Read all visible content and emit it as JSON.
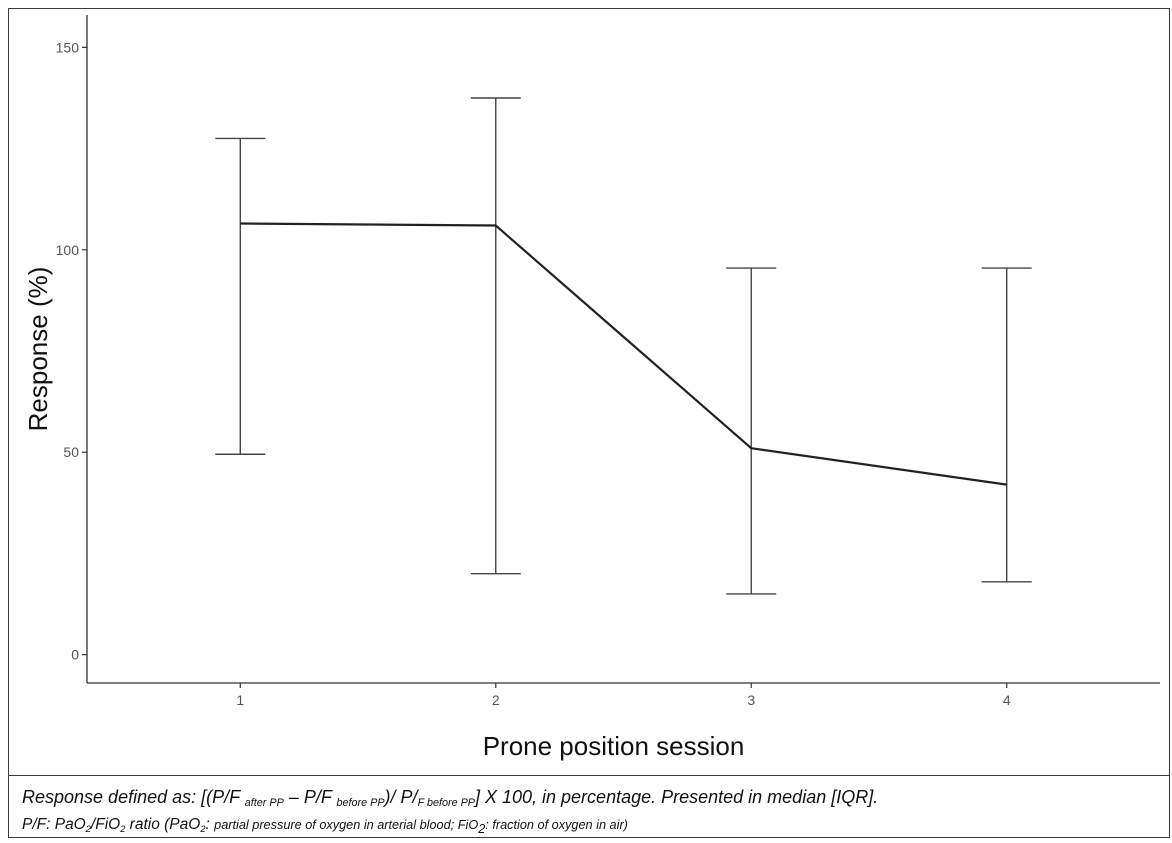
{
  "chart_data": {
    "type": "line",
    "xlabel": "Prone position session",
    "ylabel": "Response (%)",
    "xlim": [
      0.4,
      4.6
    ],
    "ylim": [
      -7,
      158
    ],
    "x_ticks": [
      "1",
      "2",
      "3",
      "4"
    ],
    "y_ticks": [
      "0",
      "50",
      "100",
      "150"
    ],
    "grid": false,
    "series": [
      {
        "x": [
          1,
          2,
          3,
          4
        ],
        "median": [
          106.5,
          106,
          51,
          42
        ],
        "iqr_low": [
          49.5,
          20,
          15,
          18
        ],
        "iqr_high": [
          127.5,
          137.5,
          95.5,
          95.5
        ]
      }
    ]
  },
  "caption": {
    "line1": {
      "prefix": "Response defined as: [(P/F ",
      "after_sub": "after PP",
      "mid1": " – P/F ",
      "before_sub1": "before PP",
      "mid2": ")/ P/",
      "before_sub2": "F before PP",
      "suffix": "] X 100, in percentage. Presented in median [IQR]."
    },
    "line2": {
      "a": "P/F: PaO",
      "a_sub": "2",
      "b": "/FiO",
      "b_sub": "2",
      "c": " ratio (PaO",
      "c_sub": "2",
      "d": ":  ",
      "e_small": "partial pressure of oxygen in arterial blood; FiO",
      "e_sub": "2",
      "f_small": ": fraction of oxygen in air)"
    }
  }
}
